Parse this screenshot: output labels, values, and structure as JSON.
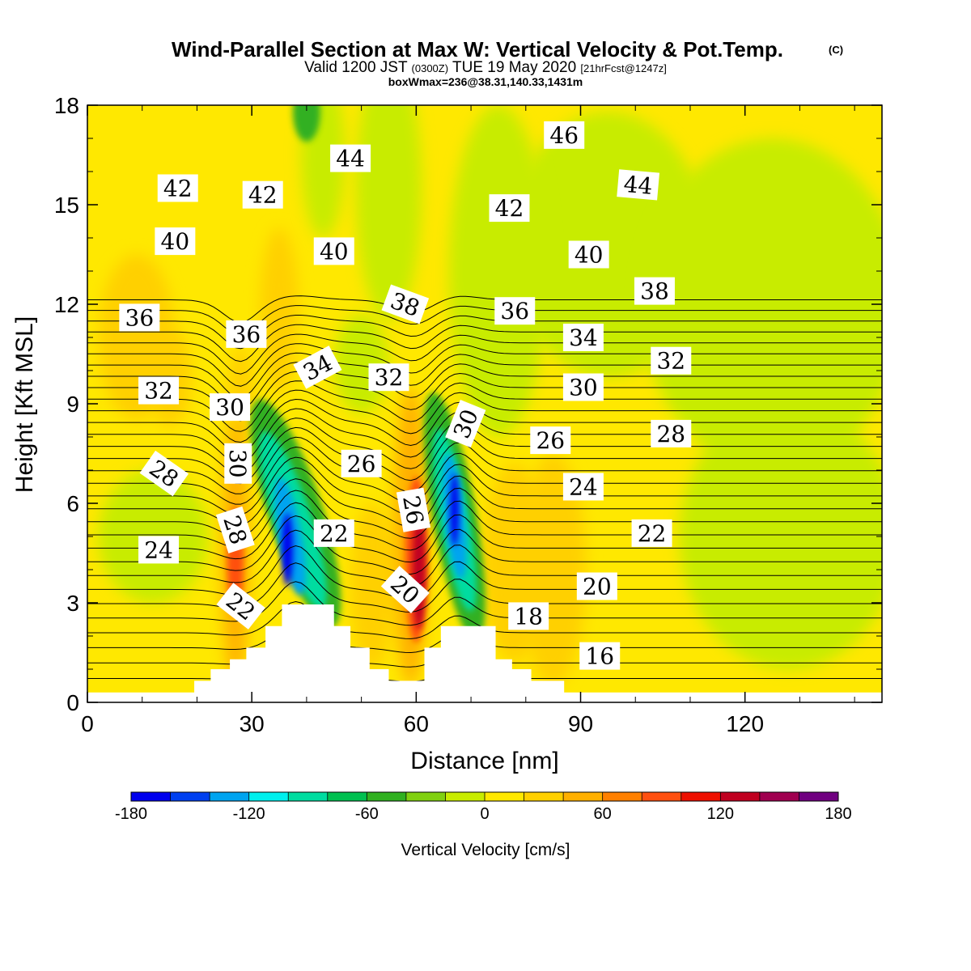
{
  "title": {
    "main": "Wind-Parallel Section at Max W: Vertical Velocity & Pot.Temp.",
    "copyright": "(C)",
    "valid_prefix": "Valid 1200 JST",
    "valid_z": "(0300Z)",
    "valid_date": "TUE 19 May 2020",
    "valid_fcst": "[21hrFcst@1247z]",
    "box": "boxWmax=236@38.31,140.33,1431m"
  },
  "chart_data": {
    "type": "heatmap",
    "xlabel": "Distance [nm]",
    "ylabel": "Height [Kft MSL]",
    "xlim": [
      0,
      145
    ],
    "ylim": [
      0,
      18
    ],
    "xticks": [
      "0",
      "30",
      "60",
      "90",
      "120"
    ],
    "yticks": [
      "0",
      "3",
      "6",
      "9",
      "12",
      "15",
      "18"
    ],
    "grid": false,
    "fill_variable": "Vertical Velocity",
    "contour_variable": "Potential Temperature",
    "colorbar": {
      "title": "Vertical Velocity [cm/s]",
      "min": -180,
      "max": 180,
      "step": 20,
      "tick_labels": [
        "-180",
        "-120",
        "-60",
        "0",
        "60",
        "120",
        "180"
      ],
      "colors": [
        "#0000ee",
        "#0040f0",
        "#00a4f0",
        "#00f0ee",
        "#00dca0",
        "#00c050",
        "#30b020",
        "#80d010",
        "#c8ec00",
        "#ffe800",
        "#ffd000",
        "#ffb000",
        "#ff8000",
        "#ff5010",
        "#ee1000",
        "#c00020",
        "#a00050",
        "#700080"
      ]
    },
    "terrain": [
      {
        "x": 0,
        "h": 0.3
      },
      {
        "x": 19.5,
        "h": 0.3
      },
      {
        "x": 19.5,
        "h": 0.65
      },
      {
        "x": 22.5,
        "h": 0.65
      },
      {
        "x": 22.5,
        "h": 1.0
      },
      {
        "x": 26,
        "h": 1.0
      },
      {
        "x": 26,
        "h": 1.3
      },
      {
        "x": 29,
        "h": 1.3
      },
      {
        "x": 29,
        "h": 1.65
      },
      {
        "x": 32.5,
        "h": 1.65
      },
      {
        "x": 32.5,
        "h": 2.3
      },
      {
        "x": 35.5,
        "h": 2.3
      },
      {
        "x": 35.5,
        "h": 2.95
      },
      {
        "x": 45,
        "h": 2.95
      },
      {
        "x": 45,
        "h": 2.3
      },
      {
        "x": 48,
        "h": 2.3
      },
      {
        "x": 48,
        "h": 1.65
      },
      {
        "x": 51.5,
        "h": 1.65
      },
      {
        "x": 51.5,
        "h": 1.0
      },
      {
        "x": 55,
        "h": 1.0
      },
      {
        "x": 55,
        "h": 0.65
      },
      {
        "x": 61.5,
        "h": 0.65
      },
      {
        "x": 61.5,
        "h": 1.65
      },
      {
        "x": 64.5,
        "h": 1.65
      },
      {
        "x": 64.5,
        "h": 2.3
      },
      {
        "x": 74.5,
        "h": 2.3
      },
      {
        "x": 74.5,
        "h": 1.3
      },
      {
        "x": 77.5,
        "h": 1.3
      },
      {
        "x": 77.5,
        "h": 1.0
      },
      {
        "x": 81,
        "h": 1.0
      },
      {
        "x": 81,
        "h": 0.65
      },
      {
        "x": 87,
        "h": 0.65
      },
      {
        "x": 87,
        "h": 0.3
      },
      {
        "x": 145,
        "h": 0.3
      }
    ],
    "theta_contour_labels": [
      {
        "text": "46",
        "x": 87,
        "y": 17.1,
        "rot": 0
      },
      {
        "text": "44",
        "x": 48,
        "y": 16.4,
        "rot": 0
      },
      {
        "text": "44",
        "x": 100.5,
        "y": 15.6,
        "rot": 5
      },
      {
        "text": "42",
        "x": 16.5,
        "y": 15.5,
        "rot": 0
      },
      {
        "text": "42",
        "x": 32,
        "y": 15.3,
        "rot": 0
      },
      {
        "text": "42",
        "x": 77,
        "y": 14.9,
        "rot": 0
      },
      {
        "text": "40",
        "x": 16,
        "y": 13.9,
        "rot": 0
      },
      {
        "text": "40",
        "x": 45,
        "y": 13.6,
        "rot": 0
      },
      {
        "text": "40",
        "x": 91.5,
        "y": 13.5,
        "rot": 0
      },
      {
        "text": "38",
        "x": 58,
        "y": 12.0,
        "rot": 20
      },
      {
        "text": "38",
        "x": 103.5,
        "y": 12.4,
        "rot": 0
      },
      {
        "text": "36",
        "x": 9.5,
        "y": 11.6,
        "rot": 0
      },
      {
        "text": "36",
        "x": 29,
        "y": 11.1,
        "rot": 0
      },
      {
        "text": "36",
        "x": 78,
        "y": 11.8,
        "rot": 0
      },
      {
        "text": "34",
        "x": 42,
        "y": 10.1,
        "rot": -28
      },
      {
        "text": "34",
        "x": 90.5,
        "y": 11.0,
        "rot": 0
      },
      {
        "text": "32",
        "x": 55,
        "y": 9.8,
        "rot": 0
      },
      {
        "text": "32",
        "x": 106.5,
        "y": 10.3,
        "rot": 0
      },
      {
        "text": "32",
        "x": 13,
        "y": 9.4,
        "rot": 0
      },
      {
        "text": "30",
        "x": 26,
        "y": 8.9,
        "rot": 0
      },
      {
        "text": "30",
        "x": 69,
        "y": 8.4,
        "rot": -68
      },
      {
        "text": "30",
        "x": 90.5,
        "y": 9.5,
        "rot": 0
      },
      {
        "text": "30",
        "x": 27.5,
        "y": 7.2,
        "rot": 90
      },
      {
        "text": "28",
        "x": 106.5,
        "y": 8.1,
        "rot": 0
      },
      {
        "text": "28",
        "x": 14,
        "y": 6.9,
        "rot": 35
      },
      {
        "text": "28",
        "x": 27,
        "y": 5.2,
        "rot": 72
      },
      {
        "text": "26",
        "x": 50,
        "y": 7.2,
        "rot": 0
      },
      {
        "text": "26",
        "x": 84.5,
        "y": 7.9,
        "rot": 0
      },
      {
        "text": "26",
        "x": 59.5,
        "y": 5.8,
        "rot": 80
      },
      {
        "text": "24",
        "x": 90.5,
        "y": 6.5,
        "rot": 0
      },
      {
        "text": "24",
        "x": 13,
        "y": 4.6,
        "rot": 0
      },
      {
        "text": "22",
        "x": 45,
        "y": 5.1,
        "rot": 0
      },
      {
        "text": "22",
        "x": 103,
        "y": 5.1,
        "rot": 0
      },
      {
        "text": "22",
        "x": 28,
        "y": 2.9,
        "rot": 38
      },
      {
        "text": "20",
        "x": 58,
        "y": 3.4,
        "rot": 42
      },
      {
        "text": "20",
        "x": 93,
        "y": 3.5,
        "rot": 0
      },
      {
        "text": "18",
        "x": 80.5,
        "y": 2.6,
        "rot": 0
      },
      {
        "text": "16",
        "x": 93.5,
        "y": 1.4,
        "rot": 0
      }
    ]
  }
}
